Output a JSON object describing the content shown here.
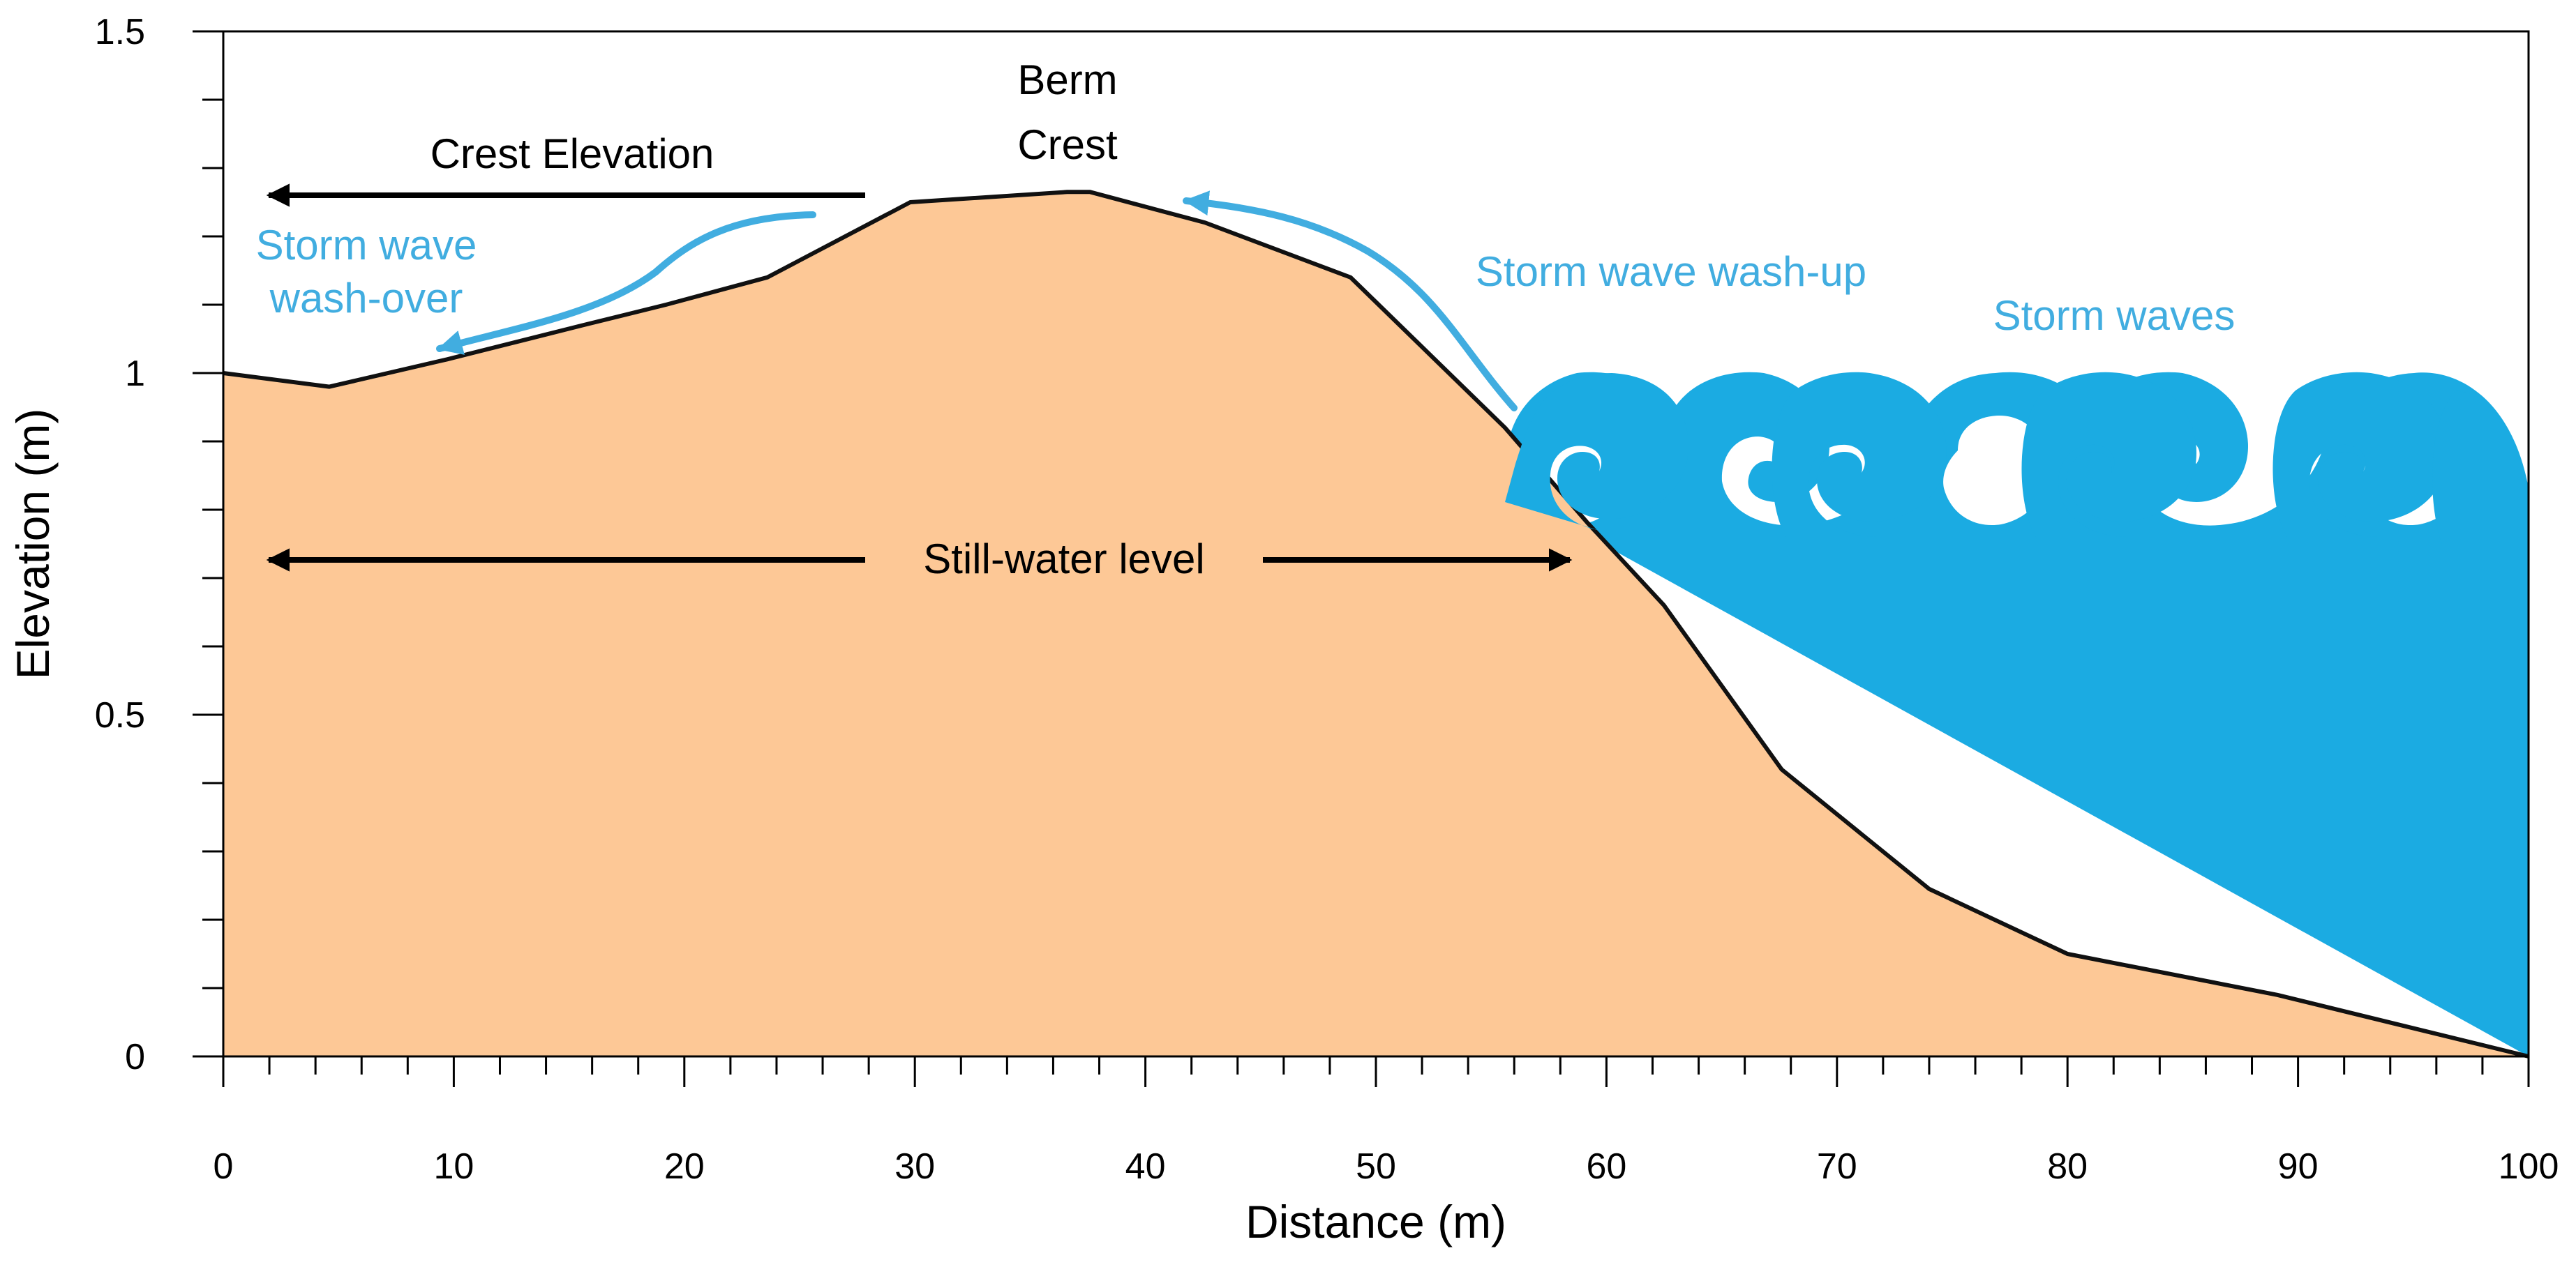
{
  "chart_data": {
    "type": "area",
    "title": "",
    "xlabel": "Distance (m)",
    "ylabel": "Elevation (m)",
    "xlim": [
      0,
      100
    ],
    "ylim": [
      0,
      1.5
    ],
    "x_ticks": [
      0,
      10,
      20,
      30,
      40,
      50,
      60,
      70,
      80,
      90,
      100
    ],
    "y_ticks": [
      0,
      0.5,
      1,
      1.5
    ],
    "x_minor_step": 2,
    "y_minor_step": 0.1,
    "grid": false,
    "colors": {
      "sand": "#FDC896",
      "water": "#1BABE2",
      "annotation_blue": "#41ADE0",
      "outline": "#111111"
    },
    "series": [
      {
        "x": [
          0,
          4.6,
          9.7,
          15.6,
          19.2,
          23.6,
          29.8,
          36.6,
          37.6,
          42.6,
          48.9,
          55.6,
          59.2,
          62.5,
          67.6,
          74.0,
          80.0,
          89.1,
          100
        ],
        "y": [
          1.0,
          0.98,
          1.02,
          1.07,
          1.1,
          1.14,
          1.25,
          1.265,
          1.265,
          1.22,
          1.14,
          0.92,
          0.78,
          0.66,
          0.42,
          0.245,
          0.15,
          0.09,
          0.0
        ]
      }
    ],
    "annotations": {
      "berm_crest_line1": "Berm",
      "berm_crest_line2": "Crest",
      "crest_elevation": "Crest Elevation",
      "storm_wave_washover_line1": "Storm wave",
      "storm_wave_washover_line2": "wash-over",
      "storm_wave_washup": "Storm wave wash-up",
      "storm_waves": "Storm waves",
      "still_water_level": "Still-water level"
    }
  }
}
